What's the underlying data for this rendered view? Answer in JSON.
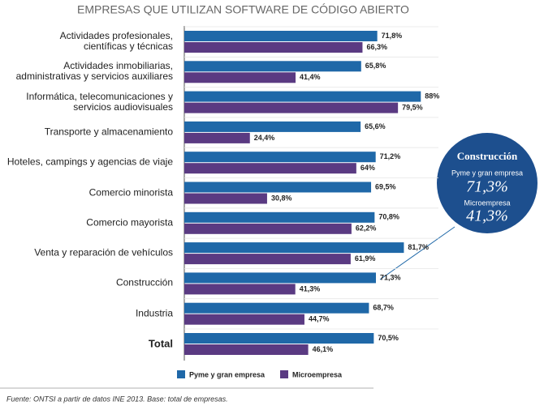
{
  "chart_data": {
    "type": "hbar",
    "title": "EMPRESAS QUE UTILIZAN SOFTWARE DE CÓDIGO ABIERTO",
    "categories": [
      "Actividades profesionales,\ncientíficas y técnicas",
      "Actividades inmobiliarias,\nadministrativas y servicios auxiliares",
      "Informática, telecomunicaciones y\nservicios audiovisuales",
      "Transporte y almacenamiento",
      "Hoteles, campings y agencias de viaje",
      "Comercio minorista",
      "Comercio mayorista",
      "Venta y reparación de vehículos",
      "Construcción",
      "Industria",
      "Total"
    ],
    "series": [
      {
        "name": "Pyme y gran empresa",
        "color": "#1f68a8",
        "values": [
          71.8,
          65.8,
          88,
          65.6,
          71.2,
          69.5,
          70.8,
          81.7,
          71.3,
          68.7,
          70.5
        ],
        "value_labels": [
          "71,8%",
          "65,8%",
          "88%",
          "65,6%",
          "71,2%",
          "69,5%",
          "70,8%",
          "81,7%",
          "71,3%",
          "68,7%",
          "70,5%"
        ]
      },
      {
        "name": "Microempresa",
        "color": "#5a3a82",
        "values": [
          66.3,
          41.4,
          79.5,
          24.4,
          64,
          30.8,
          62.2,
          61.9,
          41.3,
          44.7,
          46.1
        ],
        "value_labels": [
          "66,3%",
          "41,4%",
          "79,5%",
          "24,4%",
          "64%",
          "30,8%",
          "62,2%",
          "61,9%",
          "41,3%",
          "44,7%",
          "46,1%"
        ]
      }
    ],
    "source": "Fuente: ONTSI a partir de datos INE 2013. Base: total de empresas."
  }
}
